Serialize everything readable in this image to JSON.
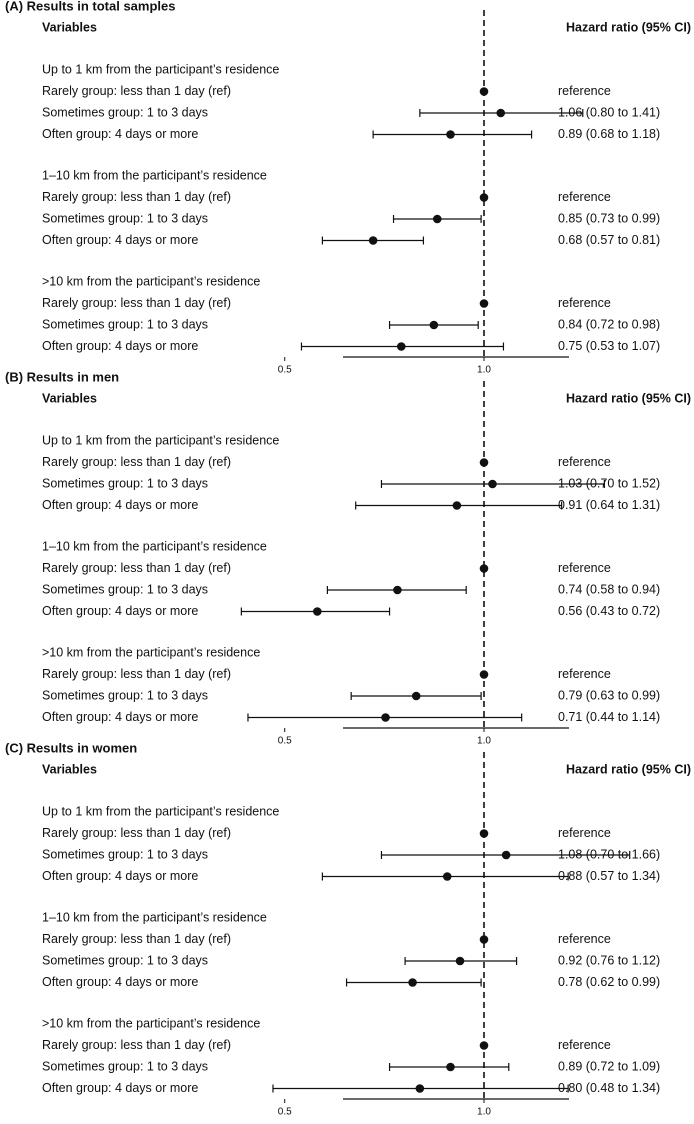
{
  "chart_data": [
    {
      "type": "forest",
      "title": "(A) Results in total samples",
      "col_left": "Variables",
      "col_right": "Hazard ratio (95% CI)",
      "reference_line": 1.0,
      "x_ticks": [
        "0.5",
        "1.0"
      ],
      "groups": [
        {
          "label": "Up to 1 km from the participant’s residence",
          "rows": [
            {
              "label": "Rarely group: less than 1 day (ref)",
              "hr": 1.0,
              "lo": 1.0,
              "hi": 1.0,
              "text": "reference"
            },
            {
              "label": "Sometimes group: 1 to 3 days",
              "hr": 1.06,
              "lo": 0.8,
              "hi": 1.41,
              "text": "1.06 (0.80 to 1.41)"
            },
            {
              "label": "Often group: 4 days or more",
              "hr": 0.89,
              "lo": 0.68,
              "hi": 1.18,
              "text": "0.89 (0.68 to 1.18)"
            }
          ]
        },
        {
          "label": "1–10 km from the participant’s residence",
          "rows": [
            {
              "label": "Rarely group: less than 1 day (ref)",
              "hr": 1.0,
              "lo": 1.0,
              "hi": 1.0,
              "text": "reference"
            },
            {
              "label": "Sometimes group: 1 to 3 days",
              "hr": 0.85,
              "lo": 0.73,
              "hi": 0.99,
              "text": "0.85 (0.73 to 0.99)"
            },
            {
              "label": "Often group: 4 days or more",
              "hr": 0.68,
              "lo": 0.57,
              "hi": 0.81,
              "text": "0.68 (0.57 to 0.81)"
            }
          ]
        },
        {
          "label": ">10 km from the participant’s residence",
          "rows": [
            {
              "label": "Rarely group: less than 1 day (ref)",
              "hr": 1.0,
              "lo": 1.0,
              "hi": 1.0,
              "text": "reference"
            },
            {
              "label": "Sometimes group: 1 to 3 days",
              "hr": 0.84,
              "lo": 0.72,
              "hi": 0.98,
              "text": "0.84 (0.72 to 0.98)"
            },
            {
              "label": "Often group: 4 days or more",
              "hr": 0.75,
              "lo": 0.53,
              "hi": 1.07,
              "text": "0.75 (0.53 to 1.07)"
            }
          ]
        }
      ]
    },
    {
      "type": "forest",
      "title": "(B) Results in men",
      "col_left": "Variables",
      "col_right": "Hazard ratio (95% CI)",
      "reference_line": 1.0,
      "x_ticks": [
        "0.5",
        "1.0"
      ],
      "groups": [
        {
          "label": "Up to 1 km from the participant’s residence",
          "rows": [
            {
              "label": "Rarely group: less than 1 day (ref)",
              "hr": 1.0,
              "lo": 1.0,
              "hi": 1.0,
              "text": "reference"
            },
            {
              "label": "Sometimes group: 1 to 3 days",
              "hr": 1.03,
              "lo": 0.7,
              "hi": 1.52,
              "text": "1.03 (0.70 to 1.52)"
            },
            {
              "label": "Often group: 4 days or more",
              "hr": 0.91,
              "lo": 0.64,
              "hi": 1.31,
              "text": "0.91 (0.64 to 1.31)"
            }
          ]
        },
        {
          "label": "1–10 km from the participant’s residence",
          "rows": [
            {
              "label": "Rarely group: less than 1 day (ref)",
              "hr": 1.0,
              "lo": 1.0,
              "hi": 1.0,
              "text": "reference"
            },
            {
              "label": "Sometimes group: 1 to 3 days",
              "hr": 0.74,
              "lo": 0.58,
              "hi": 0.94,
              "text": "0.74 (0.58 to 0.94)"
            },
            {
              "label": "Often group: 4 days or more",
              "hr": 0.56,
              "lo": 0.43,
              "hi": 0.72,
              "text": "0.56 (0.43 to 0.72)"
            }
          ]
        },
        {
          "label": ">10 km from the participant’s residence",
          "rows": [
            {
              "label": "Rarely group: less than 1 day (ref)",
              "hr": 1.0,
              "lo": 1.0,
              "hi": 1.0,
              "text": "reference"
            },
            {
              "label": "Sometimes group: 1 to 3 days",
              "hr": 0.79,
              "lo": 0.63,
              "hi": 0.99,
              "text": "0.79 (0.63 to 0.99)"
            },
            {
              "label": "Often group: 4 days or more",
              "hr": 0.71,
              "lo": 0.44,
              "hi": 1.14,
              "text": "0.71 (0.44 to 1.14)"
            }
          ]
        }
      ]
    },
    {
      "type": "forest",
      "title": "(C) Results in women",
      "col_left": "Variables",
      "col_right": "Hazard ratio (95% CI)",
      "reference_line": 1.0,
      "x_ticks": [
        "0.5",
        "1.0"
      ],
      "groups": [
        {
          "label": "Up to 1 km from the participant’s residence",
          "rows": [
            {
              "label": "Rarely group: less than 1 day (ref)",
              "hr": 1.0,
              "lo": 1.0,
              "hi": 1.0,
              "text": "reference"
            },
            {
              "label": "Sometimes group: 1 to 3 days",
              "hr": 1.08,
              "lo": 0.7,
              "hi": 1.66,
              "text": "1.08 (0.70 to 1.66)"
            },
            {
              "label": "Often group: 4 days or more",
              "hr": 0.88,
              "lo": 0.57,
              "hi": 1.34,
              "text": "0.88 (0.57 to 1.34)"
            }
          ]
        },
        {
          "label": "1–10 km from the participant’s residence",
          "rows": [
            {
              "label": "Rarely group: less than 1 day (ref)",
              "hr": 1.0,
              "lo": 1.0,
              "hi": 1.0,
              "text": "reference"
            },
            {
              "label": "Sometimes group: 1 to 3 days",
              "hr": 0.92,
              "lo": 0.76,
              "hi": 1.12,
              "text": "0.92 (0.76 to 1.12)"
            },
            {
              "label": "Often group: 4 days or more",
              "hr": 0.78,
              "lo": 0.62,
              "hi": 0.99,
              "text": "0.78 (0.62 to 0.99)"
            }
          ]
        },
        {
          "label": ">10 km from the participant’s residence",
          "rows": [
            {
              "label": "Rarely group: less than 1 day (ref)",
              "hr": 1.0,
              "lo": 1.0,
              "hi": 1.0,
              "text": "reference"
            },
            {
              "label": "Sometimes group: 1 to 3 days",
              "hr": 0.89,
              "lo": 0.72,
              "hi": 1.09,
              "text": "0.89 (0.72 to 1.09)"
            },
            {
              "label": "Often group: 4 days or more",
              "hr": 0.8,
              "lo": 0.48,
              "hi": 1.34,
              "text": "0.80 (0.48 to 1.34)"
            }
          ]
        }
      ]
    }
  ]
}
